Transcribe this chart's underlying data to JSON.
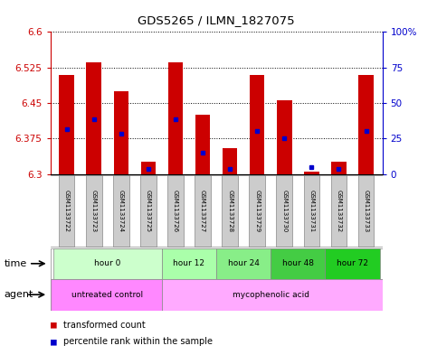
{
  "title": "GDS5265 / ILMN_1827075",
  "samples": [
    "GSM1133722",
    "GSM1133723",
    "GSM1133724",
    "GSM1133725",
    "GSM1133726",
    "GSM1133727",
    "GSM1133728",
    "GSM1133729",
    "GSM1133730",
    "GSM1133731",
    "GSM1133732",
    "GSM1133733"
  ],
  "bar_tops": [
    6.51,
    6.535,
    6.475,
    6.325,
    6.535,
    6.425,
    6.355,
    6.51,
    6.455,
    6.305,
    6.325,
    6.51
  ],
  "bar_base": 6.3,
  "blue_vals": [
    6.395,
    6.415,
    6.385,
    6.31,
    6.415,
    6.345,
    6.31,
    6.39,
    6.375,
    6.315,
    6.31,
    6.39
  ],
  "ylim": [
    6.3,
    6.6
  ],
  "yticks": [
    6.3,
    6.375,
    6.45,
    6.525,
    6.6
  ],
  "ytick_labels": [
    "6.3",
    "6.375",
    "6.45",
    "6.525",
    "6.6"
  ],
  "right_yticks": [
    0,
    25,
    50,
    75,
    100
  ],
  "right_ytick_labels": [
    "0",
    "25",
    "50",
    "75",
    "100%"
  ],
  "bar_color": "#cc0000",
  "blue_color": "#0000cc",
  "time_groups": [
    {
      "label": "hour 0",
      "start": 0,
      "end": 3,
      "color": "#ccffcc"
    },
    {
      "label": "hour 12",
      "start": 4,
      "end": 5,
      "color": "#aaffaa"
    },
    {
      "label": "hour 24",
      "start": 6,
      "end": 7,
      "color": "#88ee88"
    },
    {
      "label": "hour 48",
      "start": 8,
      "end": 9,
      "color": "#44cc44"
    },
    {
      "label": "hour 72",
      "start": 10,
      "end": 11,
      "color": "#22cc22"
    }
  ],
  "untreated_color": "#ff88ff",
  "myco_color": "#ffaaff",
  "sample_box_color": "#cccccc",
  "tick_color_left": "#cc0000",
  "tick_color_right": "#0000cc",
  "bg_color": "#ffffff"
}
